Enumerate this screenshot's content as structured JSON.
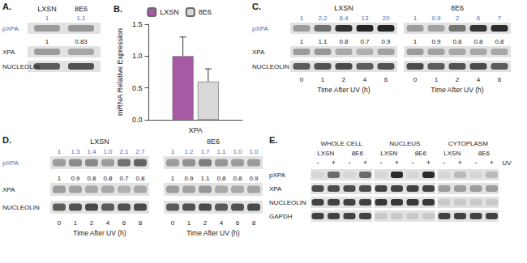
{
  "panels": {
    "A": {
      "label": "A.",
      "lanes": [
        "LXSN",
        "8E6"
      ],
      "rows": [
        {
          "name": "pXPA",
          "quant": [
            "1",
            "1.1"
          ]
        },
        {
          "name": "XPA",
          "quant": [
            "1",
            "0.83"
          ]
        },
        {
          "name": "NUCLEOLIN"
        }
      ]
    },
    "C": {
      "label": "C.",
      "groups": [
        {
          "name": "LXSN",
          "times": [
            "0",
            "1",
            "2",
            "4",
            "6"
          ]
        },
        {
          "name": "8E6",
          "times": [
            "0",
            "1",
            "2",
            "4",
            "6"
          ]
        }
      ],
      "rows": [
        {
          "name": "pXPA",
          "quant": [
            [
              "1",
              "2.2",
              "6.4",
              "13",
              "20"
            ],
            [
              "1",
              "0.9",
              "2",
              "6",
              "7"
            ]
          ]
        },
        {
          "name": "XPA",
          "quant": [
            [
              "1",
              "1.1",
              "0.8",
              "0.7",
              "0.9"
            ],
            [
              "1",
              "0.9",
              "0.8",
              "0.8",
              "0.8"
            ]
          ]
        },
        {
          "name": "NUCLEOLIN"
        }
      ],
      "xlabel": "Time After UV (h)"
    },
    "D": {
      "label": "D.",
      "groups": [
        {
          "name": "LXSN",
          "times": [
            "0",
            "1",
            "2",
            "4",
            "6",
            "8"
          ]
        },
        {
          "name": "8E6",
          "times": [
            "0",
            "1",
            "2",
            "4",
            "6",
            "8"
          ]
        }
      ],
      "rows": [
        {
          "name": "pXPA",
          "quant": [
            [
              "1",
              "1.3",
              "1.4",
              "1.0",
              "2.1",
              "2.7"
            ],
            [
              "1",
              "1.2",
              "1.7",
              "1.1",
              "1.0",
              "1.0"
            ]
          ]
        },
        {
          "name": "XPA",
          "quant": [
            [
              "1",
              "0.9",
              "0.8",
              "0.8",
              "0.7",
              "0.8"
            ],
            [
              "1",
              "0.9",
              "1.1",
              "0.8",
              "0.8",
              "0.9"
            ]
          ]
        },
        {
          "name": "NUCLEOLIN"
        }
      ],
      "xlabel": "Time After UV (h)"
    },
    "E": {
      "label": "E.",
      "groups": [
        "WHOLE CELL",
        "NUCLEUS",
        "CYTOPLASM"
      ],
      "lines": [
        "LXSN",
        "8E6"
      ],
      "treatment": [
        "-",
        "+"
      ],
      "treatment_label": "UV",
      "rows": [
        "pXPA",
        "XPA",
        "NUCLEOLIN",
        "GAPDH"
      ]
    }
  },
  "chart_data": {
    "type": "bar",
    "title": "B.",
    "ylabel": "mRNA Relative Expression",
    "categories": [
      "XPA"
    ],
    "series": [
      {
        "name": "LXSN",
        "color": "#a65aa6",
        "values": [
          1.0
        ],
        "error": [
          0.3
        ]
      },
      {
        "name": "8E6",
        "color": "#d9d9d9",
        "values": [
          0.6
        ],
        "error": [
          0.2
        ]
      }
    ],
    "ylim": [
      0,
      1.5
    ],
    "yticks": [
      {
        "value": 0,
        "label": "0.0"
      },
      0.5,
      {
        "value": 1,
        "label": "1.0"
      },
      1.5
    ],
    "legend": "top",
    "grid": false
  }
}
